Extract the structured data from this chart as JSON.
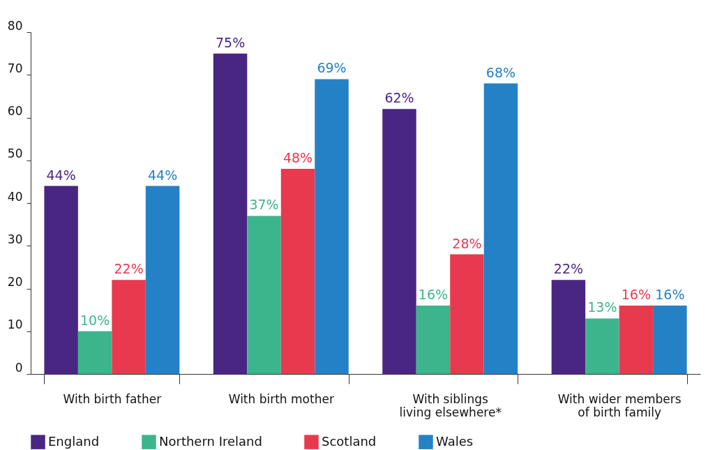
{
  "chart_data": {
    "type": "bar",
    "categories": [
      "With birth father",
      "With birth mother",
      "With siblings living elsewhere*",
      "With wider members of birth family"
    ],
    "series": [
      {
        "name": "England",
        "color": "#4a2683",
        "values": [
          44,
          75,
          62,
          22
        ],
        "value_labels": [
          "44%",
          "75%",
          "62%",
          "22%"
        ]
      },
      {
        "name": "Northern Ireland",
        "color": "#3db58c",
        "values": [
          10,
          37,
          16,
          13
        ],
        "value_labels": [
          "10%",
          "37%",
          "16%",
          "13%"
        ]
      },
      {
        "name": "Scotland",
        "color": "#e83a4f",
        "values": [
          22,
          48,
          28,
          16
        ],
        "value_labels": [
          "22%",
          "48%",
          "28%",
          "16%"
        ]
      },
      {
        "name": "Wales",
        "color": "#2581c6",
        "values": [
          44,
          69,
          68,
          16
        ],
        "value_labels": [
          "44%",
          "69%",
          "68%",
          "16%"
        ]
      }
    ],
    "ylim": [
      0,
      80
    ],
    "yticks": [
      0,
      10,
      20,
      30,
      40,
      50,
      60,
      70,
      80
    ],
    "grid": false,
    "legend": "bottom"
  }
}
